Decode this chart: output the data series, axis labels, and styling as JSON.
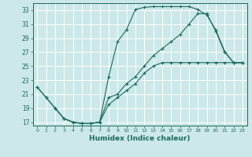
{
  "xlabel": "Humidex (Indice chaleur)",
  "background_color": "#cce8e8",
  "grid_color": "#ffffff",
  "line_color": "#1a6b5a",
  "xlim": [
    -0.5,
    23.5
  ],
  "ylim": [
    16.5,
    34
  ],
  "yticks": [
    17,
    19,
    21,
    23,
    25,
    27,
    29,
    31,
    33
  ],
  "xticks": [
    0,
    1,
    2,
    3,
    4,
    5,
    6,
    7,
    8,
    9,
    10,
    11,
    12,
    13,
    14,
    15,
    16,
    17,
    18,
    19,
    20,
    21,
    22,
    23
  ],
  "line1_x": [
    0,
    1,
    2,
    3,
    4,
    5,
    6,
    7,
    8,
    9,
    10,
    11,
    12,
    13,
    14,
    15,
    16,
    17,
    18,
    19,
    20,
    21,
    22,
    23
  ],
  "line1_y": [
    22,
    20.5,
    19,
    17.5,
    17,
    16.8,
    16.8,
    17,
    23.5,
    28.5,
    30.2,
    33.1,
    33.4,
    33.5,
    33.5,
    33.5,
    33.5,
    33.5,
    33.1,
    32.3,
    30.2,
    27.1,
    25.5,
    25.5
  ],
  "line2_x": [
    0,
    1,
    2,
    3,
    4,
    5,
    6,
    7,
    8,
    9,
    10,
    11,
    12,
    13,
    14,
    15,
    16,
    17,
    18,
    19,
    20,
    21,
    22,
    23
  ],
  "line2_y": [
    22,
    20.5,
    19,
    17.5,
    17,
    16.8,
    16.8,
    17,
    20.5,
    21.0,
    22.5,
    23.5,
    25.0,
    26.5,
    27.5,
    28.5,
    29.5,
    31.0,
    32.5,
    32.5,
    30.0,
    27.0,
    25.5,
    25.5
  ],
  "line3_x": [
    2,
    3,
    4,
    5,
    6,
    7,
    8,
    9,
    10,
    11,
    12,
    13,
    14,
    15,
    16,
    17,
    18,
    19,
    20,
    21,
    22,
    23
  ],
  "line3_y": [
    19,
    17.5,
    17,
    16.8,
    16.8,
    17,
    19.5,
    20.5,
    21.5,
    22.5,
    24.0,
    25.0,
    25.5,
    25.5,
    25.5,
    25.5,
    25.5,
    25.5,
    25.5,
    25.5,
    25.5,
    25.5
  ]
}
